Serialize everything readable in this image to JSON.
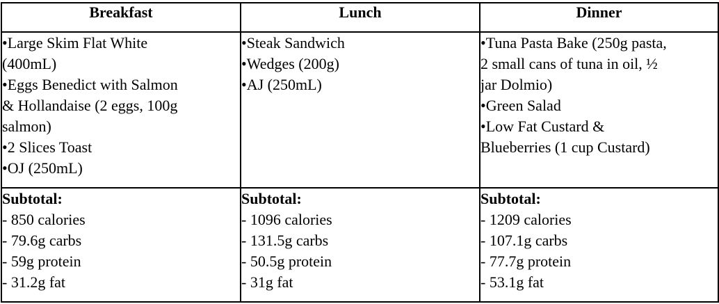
{
  "headers": [
    "Breakfast",
    "Lunch",
    "Dinner"
  ],
  "items": [
    [
      "•Large Skim Flat White",
      "(400mL)",
      "•Eggs Benedict with Salmon",
      "& Hollandaise (2 eggs, 100g",
      "salmon)",
      "•2 Slices Toast",
      "•OJ (250mL)"
    ],
    [
      "•Steak Sandwich",
      "•Wedges (200g)",
      "•AJ (250mL)"
    ],
    [
      "•Tuna Pasta Bake (250g pasta,",
      "2 small cans of tuna in oil, ½",
      "jar Dolmio)",
      "•Green Salad",
      "•Low Fat Custard &",
      "Blueberries (1 cup Custard)"
    ]
  ],
  "subtotal_label": "Subtotal:",
  "subtotals": [
    [
      "- 850 calories",
      "- 79.6g carbs",
      "- 59g protein",
      "- 31.2g fat"
    ],
    [
      "- 1096 calories",
      "- 131.5g carbs",
      "- 50.5g protein",
      "- 31g fat"
    ],
    [
      "- 1209 calories",
      "- 107.1g carbs",
      "- 77.7g protein",
      "- 53.1g fat"
    ]
  ]
}
